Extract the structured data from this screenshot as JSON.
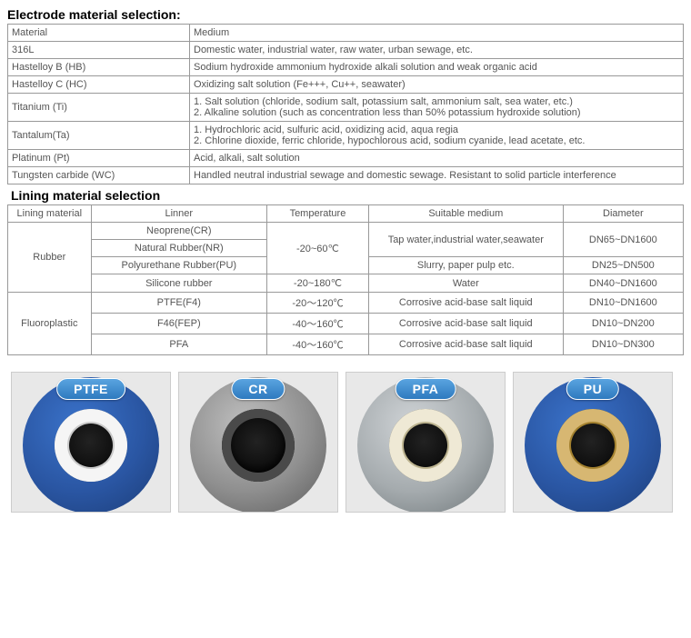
{
  "electrode": {
    "heading": "Electrode material selection:",
    "header": {
      "material": "Material",
      "medium": "Medium"
    },
    "rows": [
      {
        "material": "316L",
        "medium": "Domestic water, industrial water, raw water, urban sewage, etc."
      },
      {
        "material": "Hastelloy B (HB)",
        "medium": "Sodium hydroxide ammonium hydroxide alkali solution and weak organic acid"
      },
      {
        "material": "Hastelloy C (HC)",
        "medium": "Oxidizing salt solution (Fe+++, Cu++, seawater)"
      },
      {
        "material": "Titanium (Ti)",
        "medium": "1. Salt solution (chloride, sodium salt, potassium salt, ammonium salt, sea water, etc.)\n2. Alkaline solution (such as concentration less than 50% potassium hydroxide solution)"
      },
      {
        "material": "Tantalum(Ta)",
        "medium": "1. Hydrochloric acid, sulfuric acid, oxidizing acid, aqua regia\n2. Chlorine dioxide, ferric chloride, hypochlorous acid, sodium cyanide, lead acetate, etc."
      },
      {
        "material": "Platinum (Pt)",
        "medium": "Acid, alkali, salt solution"
      },
      {
        "material": "Tungsten carbide (WC)",
        "medium": "Handled neutral industrial sewage and domestic sewage. Resistant to solid particle interference"
      }
    ]
  },
  "lining": {
    "heading": "Lining material selection",
    "header": {
      "lm": "Lining material",
      "ln": "Linner",
      "tp": "Temperature",
      "sm": "Suitable medium",
      "dm": "Diameter"
    },
    "groups": {
      "rubber": {
        "label": "Rubber",
        "items": [
          {
            "ln": "Neoprene(CR)",
            "tp": "-20~60℃",
            "sm": "Tap water,industrial water,seawater",
            "dm": "DN65~DN1600"
          },
          {
            "ln": "Natural Rubber(NR)"
          },
          {
            "ln": "Polyurethane Rubber(PU)",
            "sm": "Slurry, paper pulp etc.",
            "dm": "DN25~DN500"
          },
          {
            "ln": "Silicone rubber",
            "tp": "-20~180℃",
            "sm": "Water",
            "dm": "DN40~DN1600"
          }
        ]
      },
      "fluoro": {
        "label": "Fluoroplastic",
        "items": [
          {
            "ln": "PTFE(F4)",
            "tp": "-20～120℃",
            "sm": "Corrosive acid-base salt liquid",
            "dm": "DN10~DN1600"
          },
          {
            "ln": "F46(FEP)",
            "tp": "-40～160℃",
            "sm": "Corrosive acid-base salt liquid",
            "dm": "DN10~DN200"
          },
          {
            "ln": "PFA",
            "tp": "-40～160℃",
            "sm": "Corrosive acid-base salt liquid",
            "dm": "DN10~DN300"
          }
        ]
      }
    }
  },
  "images": {
    "items": [
      {
        "label": "PTFE",
        "flange_color": "#2a56a3",
        "ring": "white"
      },
      {
        "label": "CR",
        "flange_color": "#8f8f8f",
        "ring": "dark"
      },
      {
        "label": "PFA",
        "flange_color": "#a5abae",
        "ring": "cream"
      },
      {
        "label": "PU",
        "flange_color": "#2a56a3",
        "ring": "tan"
      }
    ],
    "badge_bg": "#2e7abf",
    "badge_text": "#ffffff"
  }
}
